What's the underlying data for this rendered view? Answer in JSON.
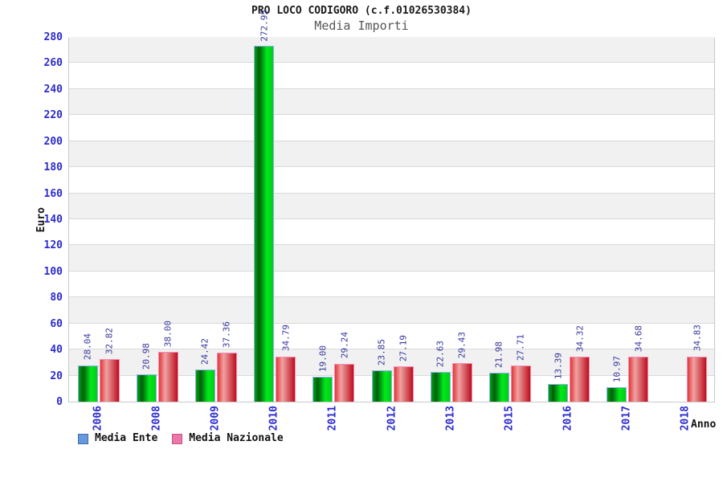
{
  "chart_data": {
    "type": "bar",
    "title": "PRO LOCO CODIGORO (c.f.01026530384)",
    "subtitle": "Media Importi",
    "ylabel": "Euro",
    "xlabel": "Anno",
    "ylim": [
      0,
      280
    ],
    "ytick_step": 20,
    "grid": "horizontal-bands",
    "legend_position": "bottom-left",
    "categories": [
      "2006",
      "2008",
      "2009",
      "2010",
      "2011",
      "2012",
      "2013",
      "2015",
      "2016",
      "2017",
      "2018"
    ],
    "series": [
      {
        "name": "Media Ente",
        "values": [
          28.04,
          20.98,
          24.42,
          272.95,
          19.0,
          23.85,
          22.63,
          21.98,
          13.39,
          10.97,
          null
        ],
        "value_labels": [
          "28.04",
          "20.98",
          "24.42",
          "272.95",
          "19.00",
          "23.85",
          "22.63",
          "21.98",
          "13.39",
          "10.97",
          null
        ],
        "bar_gradient": [
          "#00A313",
          "#005E0C",
          "#00E81B",
          "#00CD17"
        ],
        "bar_gradient_stops": [
          0,
          25,
          65,
          100
        ],
        "bar_border": "#90AFF2"
      },
      {
        "name": "Media Nazionale",
        "values": [
          32.82,
          38.0,
          37.36,
          34.79,
          29.24,
          27.19,
          29.43,
          27.71,
          34.32,
          34.68,
          34.83
        ],
        "value_labels": [
          "32.82",
          "38.00",
          "37.36",
          "34.79",
          "29.24",
          "27.19",
          "29.43",
          "27.71",
          "34.32",
          "34.68",
          "34.83"
        ],
        "bar_gradient": [
          "#E23535",
          "#F0A3A3",
          "#BC0E1E"
        ],
        "bar_gradient_stops": [
          0,
          32,
          100
        ],
        "bar_border": "#F58AB6"
      }
    ],
    "legend": [
      {
        "label": "Media Ente",
        "fill": "#6699DD",
        "border": "#3E6FA6"
      },
      {
        "label": "Media Nazionale",
        "fill": "#EE77AA",
        "border": "#C25585"
      }
    ],
    "colors": {
      "tick_text": "#2B2BCF",
      "value_text": "#38389E",
      "band_gray": "#F1F1F1",
      "gridline": "#D9D9D9",
      "plot_border": "#C9C9C9",
      "title_text": "#1A1A1A",
      "subtitle_text": "#555555"
    }
  }
}
